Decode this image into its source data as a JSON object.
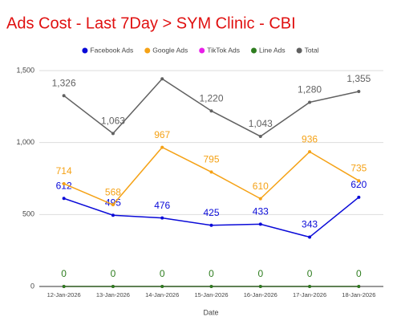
{
  "chart_data": {
    "type": "line",
    "title": "Ads Cost - Last 7Day > SYM Clinic - CBI",
    "x_label": "Date",
    "categories": [
      "12-Jan-2026",
      "13-Jan-2026",
      "14-Jan-2026",
      "15-Jan-2026",
      "16-Jan-2026",
      "17-Jan-2026",
      "18-Jan-2026"
    ],
    "series": [
      {
        "name": "Facebook Ads",
        "color": "#0a0ad8",
        "values": [
          612,
          495,
          476,
          425,
          433,
          343,
          620
        ],
        "data_labels": true
      },
      {
        "name": "Google Ads",
        "color": "#f5a216",
        "values": [
          714,
          568,
          967,
          795,
          610,
          936,
          735
        ],
        "data_labels": true
      },
      {
        "name": "TikTok Ads",
        "color": "#e81ee8",
        "values": [
          0,
          0,
          0,
          0,
          0,
          0,
          0
        ],
        "data_labels": false
      },
      {
        "name": "Line Ads",
        "color": "#2e7d1f",
        "values": [
          0,
          0,
          0,
          0,
          0,
          0,
          0
        ],
        "data_labels": true
      },
      {
        "name": "Total",
        "color": "#616161",
        "values": [
          1326,
          1063,
          1443,
          1220,
          1043,
          1280,
          1355
        ],
        "value_labels": [
          "1,326",
          "1,063",
          null,
          "1,220",
          "1,043",
          "1,280",
          "1,355"
        ],
        "data_labels": true
      }
    ],
    "ylim": [
      0,
      1500
    ],
    "yticks": [
      0,
      500,
      {
        "value": 1000,
        "label": "1,000"
      },
      {
        "value": 1500,
        "label": "1,500"
      }
    ],
    "grid": true,
    "legend": "top"
  }
}
